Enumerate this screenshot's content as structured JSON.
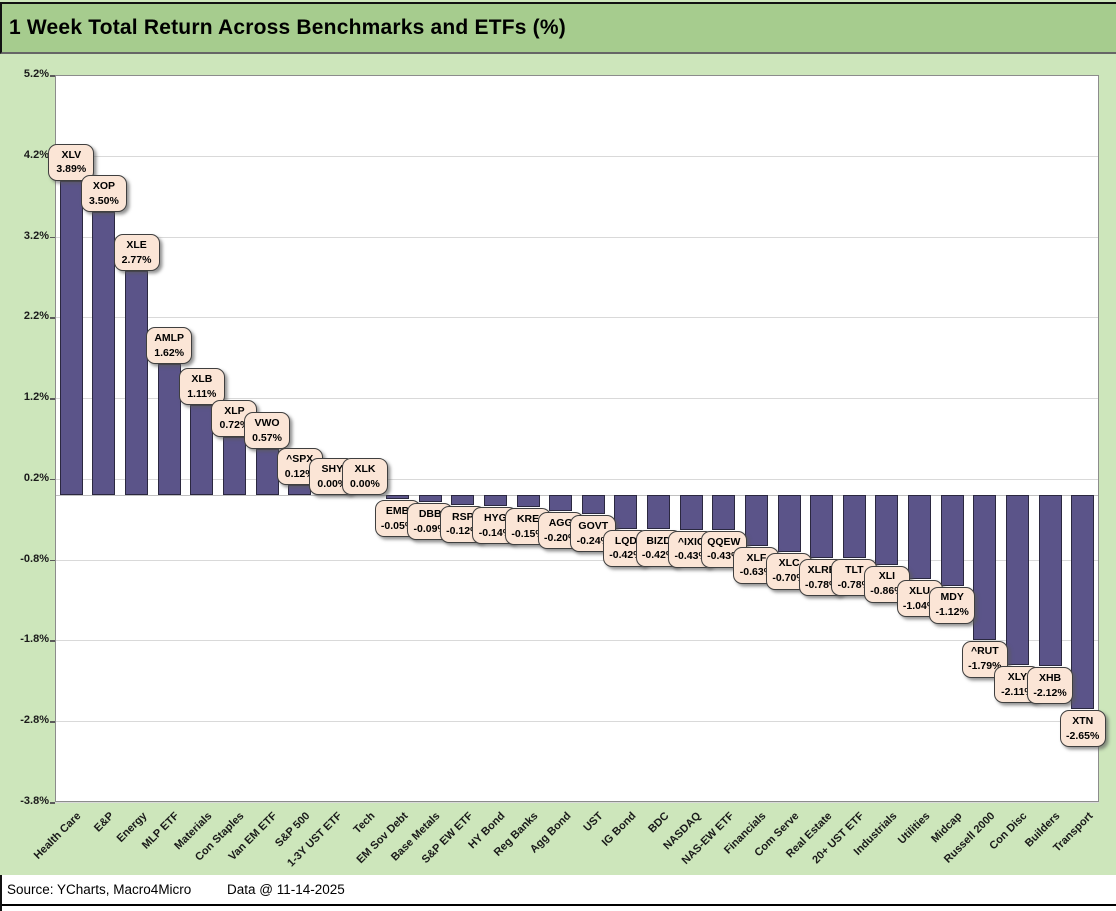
{
  "footer": {
    "source": "Source: YCharts, Macro4Micro",
    "data_date": "Data @ 11-14-2025"
  },
  "colors": {
    "background_green": "#cde6bb",
    "title_band_green": "#a6cc8e",
    "bar_fill": "#5b5489",
    "bar_border": "#2b2840",
    "callout_fill": "#fbe5d6",
    "callout_border": "#3f3f3f",
    "gridline": "#d9d9d9",
    "plot_border": "#8c8c8c"
  },
  "chart_data": {
    "type": "bar",
    "title": "1 Week Total Return Across Benchmarks and ETFs (%)",
    "xlabel": "",
    "ylabel": "",
    "ylim": [
      -3.8,
      5.2
    ],
    "yticks": [
      5.2,
      4.2,
      3.2,
      2.2,
      1.2,
      0.2,
      -0.8,
      -1.8,
      -2.8,
      -3.8
    ],
    "ytick_labels": [
      "5.2%",
      "4.2%",
      "3.2%",
      "2.2%",
      "1.2%",
      "0.2%",
      "-0.8%",
      "-1.8%",
      "-2.8%",
      "-3.8%"
    ],
    "grid": "horizontal",
    "legend": "none",
    "points": [
      {
        "category": "Health Care",
        "ticker": "XLV",
        "value": 3.89,
        "display": "3.89%"
      },
      {
        "category": "E&P",
        "ticker": "XOP",
        "value": 3.5,
        "display": "3.50%"
      },
      {
        "category": "Energy",
        "ticker": "XLE",
        "value": 2.77,
        "display": "2.77%"
      },
      {
        "category": "MLP ETF",
        "ticker": "AMLP",
        "value": 1.62,
        "display": "1.62%"
      },
      {
        "category": "Materials",
        "ticker": "XLB",
        "value": 1.11,
        "display": "1.11%"
      },
      {
        "category": "Con Staples",
        "ticker": "XLP",
        "value": 0.72,
        "display": "0.72%"
      },
      {
        "category": "Van EM ETF",
        "ticker": "VWO",
        "value": 0.57,
        "display": "0.57%"
      },
      {
        "category": "S&P 500",
        "ticker": "^SPX",
        "value": 0.12,
        "display": "0.12%"
      },
      {
        "category": "1-3Y UST ETF",
        "ticker": "SHY",
        "value": 0.0,
        "display": "0.00%"
      },
      {
        "category": "Tech",
        "ticker": "XLK",
        "value": 0.0,
        "display": "0.00%"
      },
      {
        "category": "EM Sov Debt",
        "ticker": "EMB",
        "value": -0.05,
        "display": "-0.05%"
      },
      {
        "category": "Base Metals",
        "ticker": "DBB",
        "value": -0.09,
        "display": "-0.09%"
      },
      {
        "category": "S&P EW ETF",
        "ticker": "RSP",
        "value": -0.12,
        "display": "-0.12%"
      },
      {
        "category": "HY Bond",
        "ticker": "HYG",
        "value": -0.14,
        "display": "-0.14%"
      },
      {
        "category": "Reg Banks",
        "ticker": "KRE",
        "value": -0.15,
        "display": "-0.15%"
      },
      {
        "category": "Agg Bond",
        "ticker": "AGG",
        "value": -0.2,
        "display": "-0.20%"
      },
      {
        "category": "UST",
        "ticker": "GOVT",
        "value": -0.24,
        "display": "-0.24%"
      },
      {
        "category": "IG Bond",
        "ticker": "LQD",
        "value": -0.42,
        "display": "-0.42%"
      },
      {
        "category": "BDC",
        "ticker": "BIZD",
        "value": -0.42,
        "display": "-0.42%"
      },
      {
        "category": "NASDAQ",
        "ticker": "^IXIC",
        "value": -0.43,
        "display": "-0.43%"
      },
      {
        "category": "NAS-EW ETF",
        "ticker": "QQEW",
        "value": -0.43,
        "display": "-0.43%"
      },
      {
        "category": "Financials",
        "ticker": "XLF",
        "value": -0.63,
        "display": "-0.63%"
      },
      {
        "category": "Com Serve",
        "ticker": "XLC",
        "value": -0.7,
        "display": "-0.70%"
      },
      {
        "category": "Real Estate",
        "ticker": "XLRE",
        "value": -0.78,
        "display": "-0.78%"
      },
      {
        "category": "20+ UST ETF",
        "ticker": "TLT",
        "value": -0.78,
        "display": "-0.78%"
      },
      {
        "category": "Industrials",
        "ticker": "XLI",
        "value": -0.86,
        "display": "-0.86%"
      },
      {
        "category": "Utilities",
        "ticker": "XLU",
        "value": -1.04,
        "display": "-1.04%"
      },
      {
        "category": "Midcap",
        "ticker": "MDY",
        "value": -1.12,
        "display": "-1.12%"
      },
      {
        "category": "Russell 2000",
        "ticker": "^RUT",
        "value": -1.79,
        "display": "-1.79%"
      },
      {
        "category": "Con Disc",
        "ticker": "XLY",
        "value": -2.11,
        "display": "-2.11%"
      },
      {
        "category": "Builders",
        "ticker": "XHB",
        "value": -2.12,
        "display": "-2.12%"
      },
      {
        "category": "Transport",
        "ticker": "XTN",
        "value": -2.65,
        "display": "-2.65%"
      }
    ]
  }
}
